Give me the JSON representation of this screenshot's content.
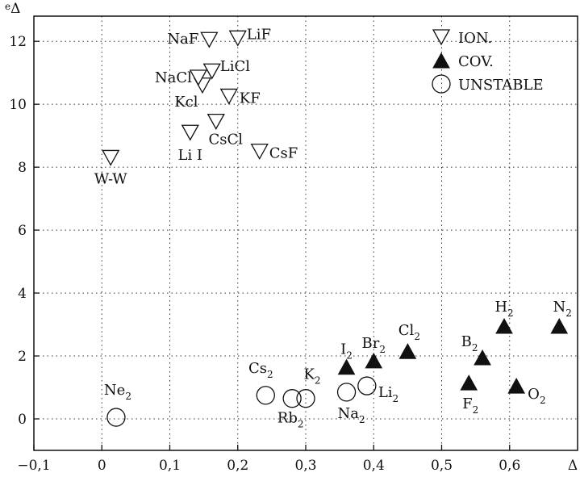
{
  "chart_data": {
    "type": "scatter",
    "ylabel": "eΔ",
    "xlabel": "Δ",
    "xlim": [
      -0.1,
      0.7
    ],
    "ylim": [
      -1,
      12.8
    ],
    "x_ticks": [
      -0.1,
      0,
      0.1,
      0.2,
      0.3,
      0.4,
      0.5,
      0.6
    ],
    "x_tick_labels": [
      "−0,1",
      "0",
      "0,1",
      "0,2",
      "0,3",
      "0,4",
      "0,5",
      "0,6"
    ],
    "y_ticks": [
      0,
      2,
      4,
      6,
      8,
      10,
      12
    ],
    "y_tick_labels": [
      "0",
      "2",
      "4",
      "6",
      "8",
      "10",
      "12"
    ],
    "grid": true,
    "grid_style": "dotted",
    "legend_position": "top-right",
    "series": [
      {
        "name": "ION.",
        "marker": "triangle-down-open",
        "points": [
          {
            "label": "W-W",
            "x": 0.013,
            "y": 8.3
          },
          {
            "label": "Li I",
            "x": 0.13,
            "y": 9.1
          },
          {
            "label": "CsCl",
            "x": 0.168,
            "y": 9.45
          },
          {
            "label": "CsF",
            "x": 0.232,
            "y": 8.5
          },
          {
            "label": "Kcl",
            "x": 0.148,
            "y": 10.6
          },
          {
            "label": "NaCl",
            "x": 0.142,
            "y": 10.85
          },
          {
            "label": "LiCl",
            "x": 0.162,
            "y": 11.05
          },
          {
            "label": "KF",
            "x": 0.187,
            "y": 10.25
          },
          {
            "label": "NaF",
            "x": 0.158,
            "y": 12.05
          },
          {
            "label": "LiF",
            "x": 0.2,
            "y": 12.1
          }
        ]
      },
      {
        "name": "COV.",
        "marker": "triangle-up-filled",
        "points": [
          {
            "label": "I",
            "sub": "2",
            "x": 0.36,
            "y": 1.65
          },
          {
            "label": "Br",
            "sub": "2",
            "x": 0.4,
            "y": 1.85
          },
          {
            "label": "Cl",
            "sub": "2",
            "x": 0.45,
            "y": 2.15
          },
          {
            "label": "B",
            "sub": "2",
            "x": 0.56,
            "y": 1.95
          },
          {
            "label": "H",
            "sub": "2",
            "x": 0.592,
            "y": 2.95
          },
          {
            "label": "N",
            "sub": "2",
            "x": 0.673,
            "y": 2.95
          },
          {
            "label": "F",
            "sub": "2",
            "x": 0.54,
            "y": 1.15
          },
          {
            "label": "O",
            "sub": "2",
            "x": 0.61,
            "y": 1.05
          }
        ]
      },
      {
        "name": "UNSTABLE",
        "marker": "circle-open",
        "points": [
          {
            "label": "Ne",
            "sub": "2",
            "x": 0.021,
            "y": 0.05
          },
          {
            "label": "Cs",
            "sub": "2",
            "x": 0.241,
            "y": 0.75
          },
          {
            "label": "Rb",
            "sub": "2",
            "x": 0.28,
            "y": 0.65
          },
          {
            "label": "K",
            "sub": "2",
            "x": 0.3,
            "y": 0.65
          },
          {
            "label": "Na",
            "sub": "2",
            "x": 0.36,
            "y": 0.85
          },
          {
            "label": "Li",
            "sub": "2",
            "x": 0.39,
            "y": 1.05
          }
        ]
      }
    ]
  }
}
